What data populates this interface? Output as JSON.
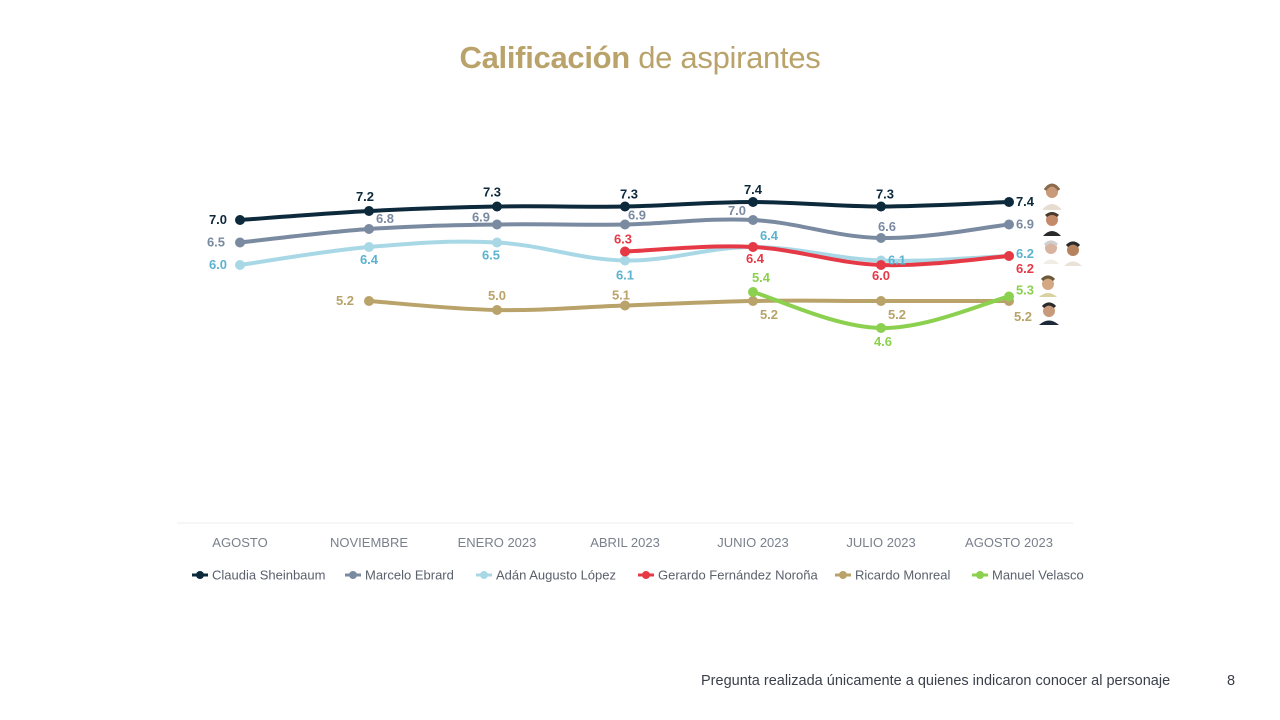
{
  "title": {
    "bold": "Calificación",
    "rest": " de aspirantes"
  },
  "footnote": "Pregunta realizada únicamente a quienes indicaron conocer al personaje",
  "page_number": "8",
  "chart_data": {
    "type": "line",
    "title": "Calificación de aspirantes",
    "xlabel": "",
    "ylabel": "",
    "grid": false,
    "legend_position": "bottom",
    "categories": [
      "AGOSTO",
      "NOVIEMBRE",
      "ENERO 2023",
      "ABRIL 2023",
      "JUNIO 2023",
      "JULIO 2023",
      "AGOSTO 2023"
    ],
    "series": [
      {
        "name": "Claudia Sheinbaum",
        "color": "#0d2a3d",
        "label_color": "#0d2a3d",
        "values": [
          7.0,
          7.2,
          7.3,
          7.3,
          7.4,
          7.3,
          7.4
        ],
        "labels": [
          "7.0",
          "7.2",
          "7.3",
          "7.3",
          "7.4",
          "7.3",
          "7.4"
        ]
      },
      {
        "name": "Marcelo Ebrard",
        "color": "#7a8aa0",
        "label_color": "#7a8aa0",
        "values": [
          6.5,
          6.8,
          6.9,
          6.9,
          7.0,
          6.6,
          6.9
        ],
        "labels": [
          "6.5",
          "6.8",
          "6.9",
          "6.9",
          "7.0",
          "6.6",
          "6.9"
        ]
      },
      {
        "name": "Adán Augusto López",
        "color": "#a8d8e6",
        "label_color": "#5bb3cf",
        "values": [
          6.0,
          6.4,
          6.5,
          6.1,
          6.4,
          6.1,
          6.2
        ],
        "labels": [
          "6.0",
          "6.4",
          "6.5",
          "6.1",
          "6.4",
          "6.1",
          "6.2"
        ]
      },
      {
        "name": "Gerardo Fernández Noroña",
        "color": "#e63946",
        "label_color": "#e63946",
        "values": [
          null,
          null,
          null,
          6.3,
          6.4,
          6.0,
          6.2
        ],
        "labels": [
          null,
          null,
          null,
          "6.3",
          "6.4",
          "6.0",
          "6.2"
        ]
      },
      {
        "name": "Ricardo Monreal",
        "color": "#b9a36a",
        "label_color": "#b9a36a",
        "values": [
          null,
          5.2,
          5.0,
          5.1,
          5.2,
          5.2,
          5.2
        ],
        "labels": [
          null,
          "5.2",
          "5.0",
          "5.1",
          "5.2",
          "5.2",
          "5.2"
        ]
      },
      {
        "name": "Manuel Velasco",
        "color": "#8cd04f",
        "label_color": "#8cd04f",
        "values": [
          null,
          null,
          null,
          null,
          5.4,
          4.6,
          5.3
        ],
        "labels": [
          null,
          null,
          null,
          null,
          "5.4",
          "4.6",
          "5.3"
        ]
      }
    ]
  }
}
